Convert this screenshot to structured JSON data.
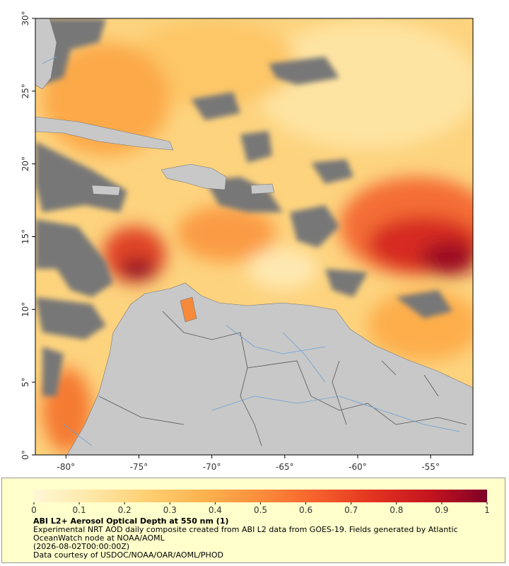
{
  "chart_data": {
    "type": "map",
    "title": "ABI L2+ Aerosol Optical Depth at 550 nm (1)",
    "description": "Experimental NRT AOD daily composite created from ABI L2 data from GOES-19. Fields generated by Atlantic OceanWatch node at NOAA/AOML",
    "date": "(2026-08-02T00:00:00Z)",
    "credit": "Data courtesy of USDOC/NOAA/OAR/AOML/PHOD",
    "xlim": [
      -82.1,
      -52.1
    ],
    "ylim": [
      0,
      30
    ],
    "xticks": [
      {
        "value": -80,
        "label": "-80°"
      },
      {
        "value": -75,
        "label": "-75°"
      },
      {
        "value": -70,
        "label": "-70°"
      },
      {
        "value": -65,
        "label": "-65°"
      },
      {
        "value": -60,
        "label": "-60°"
      },
      {
        "value": -55,
        "label": "-55°"
      }
    ],
    "yticks": [
      {
        "value": 0,
        "label": "0°"
      },
      {
        "value": 5,
        "label": "5°"
      },
      {
        "value": 10,
        "label": "10°"
      },
      {
        "value": 15,
        "label": "15°"
      },
      {
        "value": 20,
        "label": "20°"
      },
      {
        "value": 25,
        "label": "25°"
      },
      {
        "value": 30,
        "label": "30°"
      }
    ],
    "colorbar": {
      "lim": [
        0,
        1
      ],
      "ticks": [
        0,
        0.1,
        0.2,
        0.3,
        0.4,
        0.5,
        0.6,
        0.7,
        0.8,
        0.9,
        1
      ],
      "colors": [
        "#fff7d6",
        "#fee8a8",
        "#fecf72",
        "#fdb24e",
        "#fc8d3c",
        "#f6602c",
        "#e2331f",
        "#c3141f",
        "#800026"
      ]
    }
  }
}
